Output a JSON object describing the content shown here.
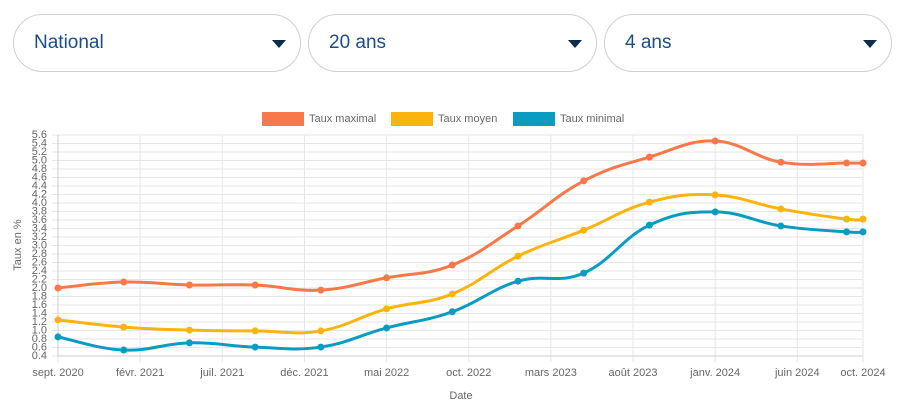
{
  "filters": [
    "National",
    "20 ans",
    "4 ans"
  ],
  "chart_data": {
    "type": "line",
    "x": [
      "2020-09",
      "2021-01",
      "2021-05",
      "2021-09",
      "2022-01",
      "2022-05",
      "2022-09",
      "2023-01",
      "2023-05",
      "2023-09",
      "2024-01",
      "2024-05",
      "2024-09",
      "2024-10"
    ],
    "series": [
      {
        "name": "Taux maximal",
        "color": "#f7794a",
        "values": [
          2.0,
          2.14,
          2.07,
          2.07,
          1.95,
          2.24,
          2.54,
          3.46,
          4.52,
          5.08,
          5.46,
          4.96,
          4.94,
          4.94
        ]
      },
      {
        "name": "Taux moyen",
        "color": "#fbb40f",
        "values": [
          1.25,
          1.08,
          1.01,
          0.99,
          0.99,
          1.51,
          1.86,
          2.75,
          3.36,
          4.02,
          4.19,
          3.86,
          3.62,
          3.62
        ]
      },
      {
        "name": "Taux minimal",
        "color": "#0a9cc0",
        "values": [
          0.85,
          0.54,
          0.71,
          0.61,
          0.61,
          1.06,
          1.44,
          2.16,
          2.35,
          3.48,
          3.79,
          3.46,
          3.32,
          3.32
        ]
      }
    ],
    "xlabel": "Date",
    "ylabel": "Taux en %",
    "xlim": [
      "2020-09",
      "2024-10"
    ],
    "xticks": [
      {
        "value": "2020-09",
        "label": "sept. 2020"
      },
      {
        "value": "2021-02",
        "label": "févr. 2021"
      },
      {
        "value": "2021-07",
        "label": "juil. 2021"
      },
      {
        "value": "2021-12",
        "label": "déc. 2021"
      },
      {
        "value": "2022-05",
        "label": "mai 2022"
      },
      {
        "value": "2022-10",
        "label": "oct. 2022"
      },
      {
        "value": "2023-03",
        "label": "mars 2023"
      },
      {
        "value": "2023-08",
        "label": "août 2023"
      },
      {
        "value": "2024-01",
        "label": "janv. 2024"
      },
      {
        "value": "2024-06",
        "label": "juin 2024"
      },
      {
        "value": "2024-10",
        "label": "oct. 2024"
      }
    ],
    "ylim": [
      0.4,
      5.6
    ],
    "yticks": [
      0.4,
      0.6,
      0.8,
      {
        "value": 1,
        "label": "1.0"
      },
      1.2,
      1.4,
      1.6,
      1.8,
      {
        "value": 2,
        "label": "2.0"
      },
      2.2,
      2.4,
      2.6,
      2.8,
      {
        "value": 3,
        "label": "3.0"
      },
      3.2,
      3.4,
      3.6,
      3.8,
      {
        "value": 4,
        "label": "4.0"
      },
      4.2,
      4.4,
      4.6,
      4.8,
      {
        "value": 5,
        "label": "5.0"
      },
      5.2,
      5.4,
      5.6
    ],
    "grid": true,
    "legend": "top"
  }
}
